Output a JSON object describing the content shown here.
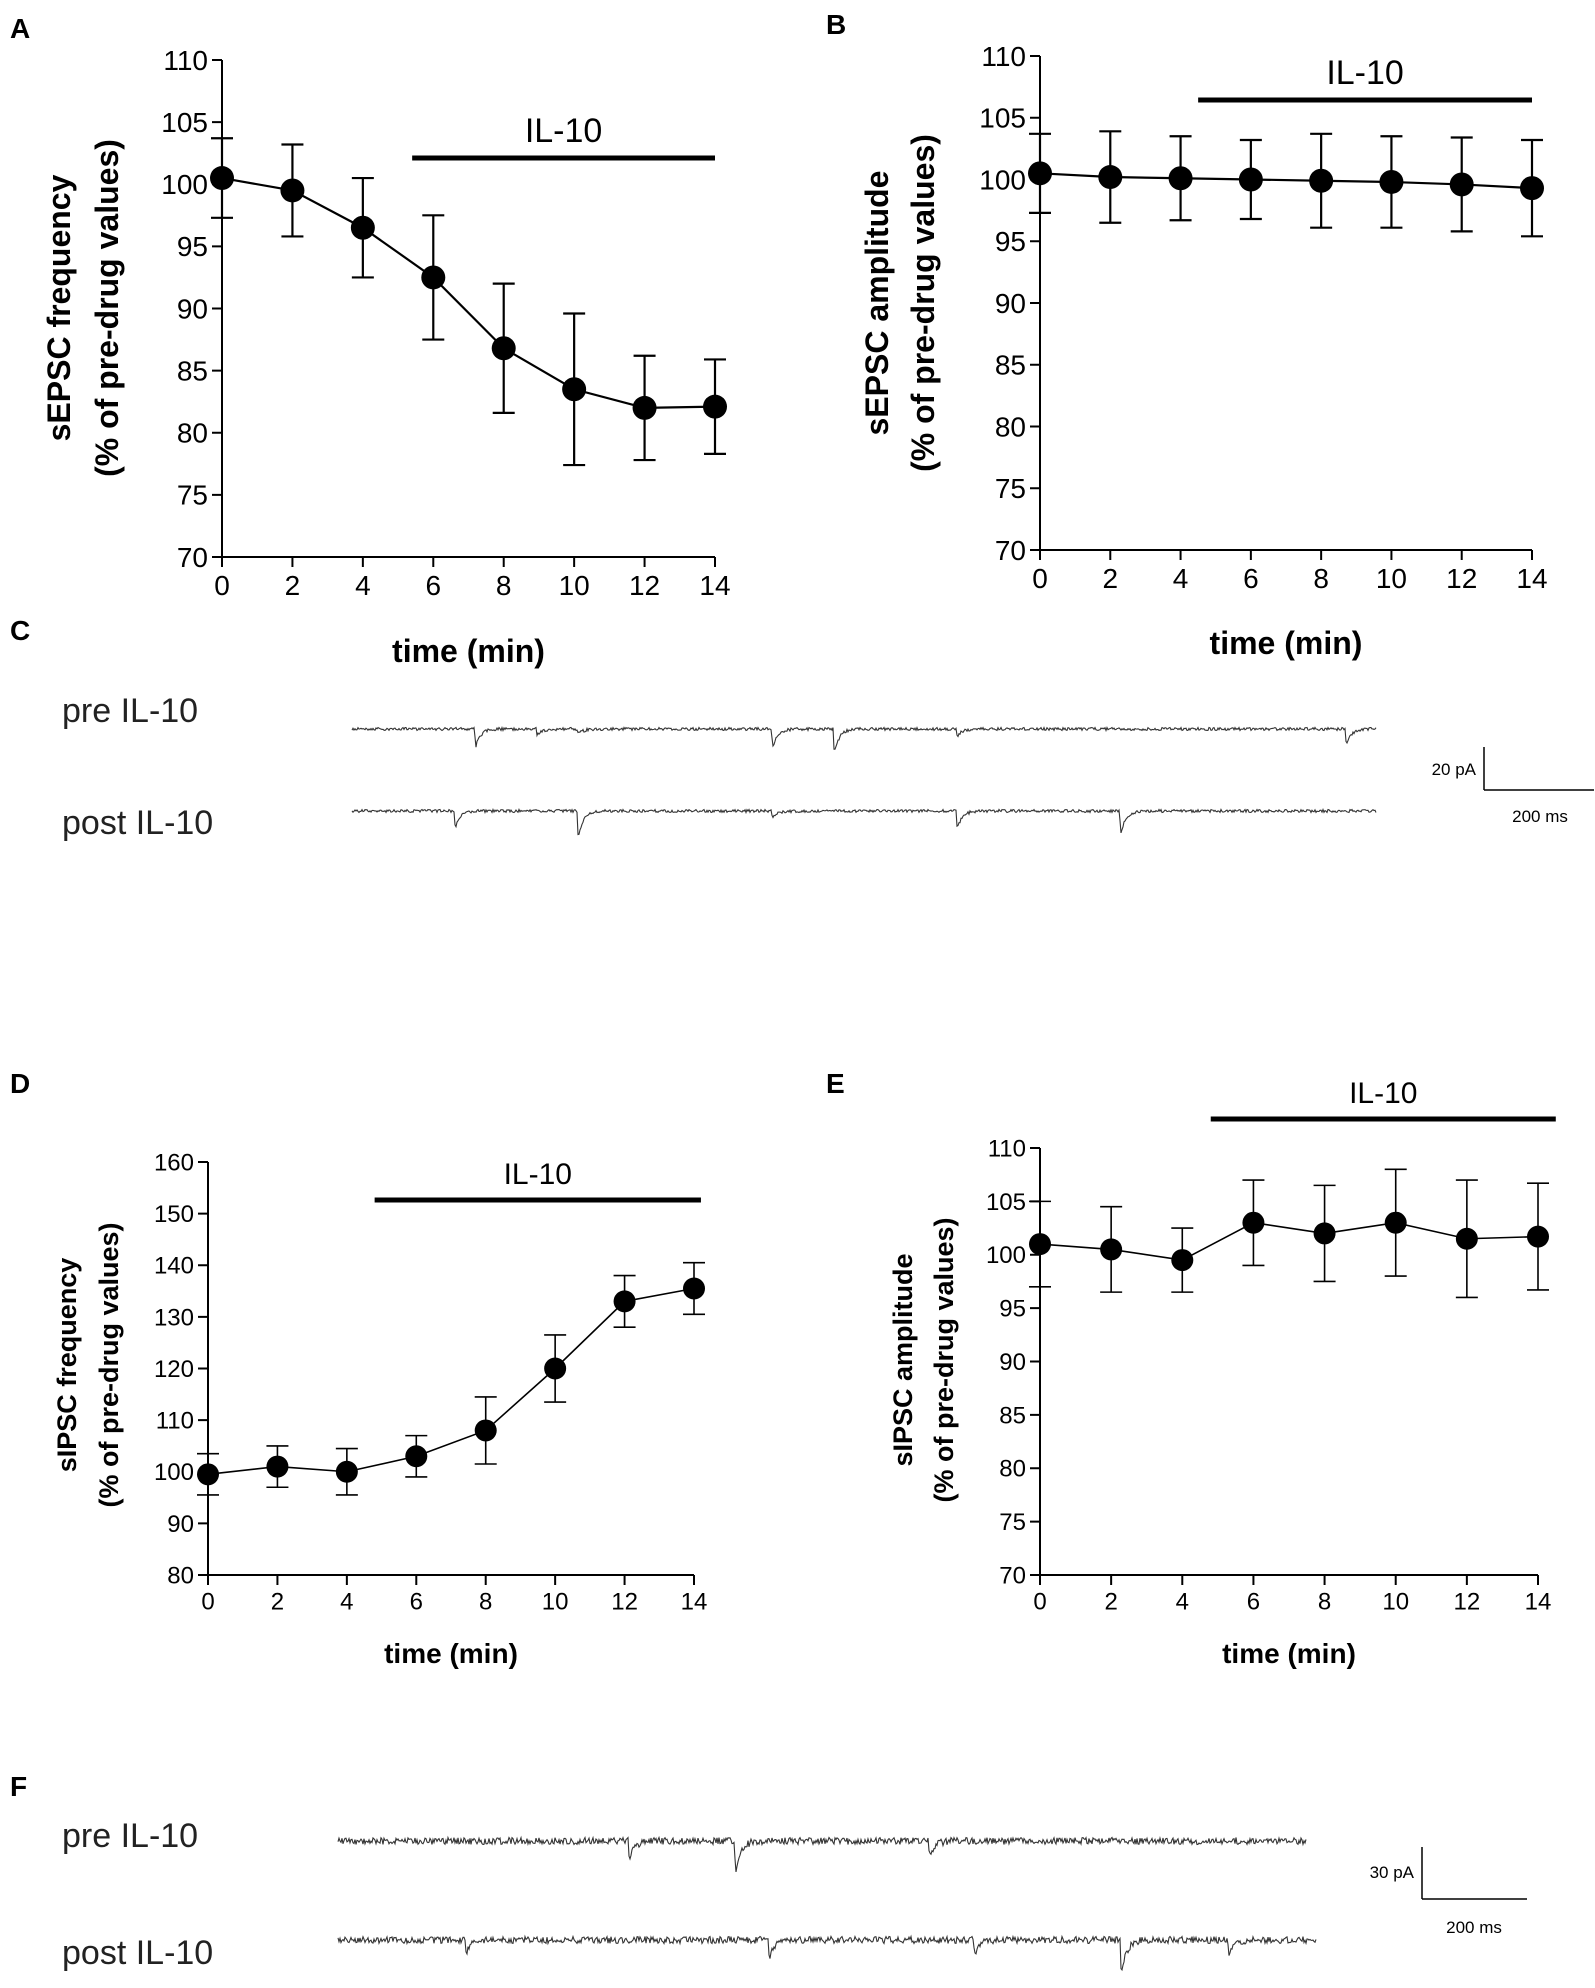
{
  "chart_data": [
    {
      "panel": "A",
      "type": "line",
      "x": [
        0,
        2,
        4,
        6,
        8,
        10,
        12,
        14
      ],
      "values": [
        100.5,
        99.5,
        96.5,
        92.5,
        86.8,
        83.5,
        82.0,
        82.1
      ],
      "errors": [
        3.2,
        3.7,
        4.0,
        5.0,
        5.2,
        6.1,
        4.2,
        3.8
      ],
      "xlim": [
        0,
        14
      ],
      "ylim": [
        70,
        110
      ],
      "xticks": [
        0,
        2,
        4,
        6,
        8,
        10,
        12,
        14
      ],
      "yticks": [
        70,
        75,
        80,
        85,
        90,
        95,
        100,
        105,
        110
      ],
      "xlabel": "time (min)",
      "ylabel": [
        "sEPSC frequency",
        "(% of pre-drug values)"
      ],
      "drug_bar": {
        "label": "IL-10",
        "start": 5.4,
        "end": 14
      }
    },
    {
      "panel": "B",
      "type": "line",
      "x": [
        0,
        2,
        4,
        6,
        8,
        10,
        12,
        14
      ],
      "values": [
        100.5,
        100.2,
        100.1,
        100.0,
        99.9,
        99.8,
        99.6,
        99.3
      ],
      "errors": [
        3.2,
        3.7,
        3.4,
        3.2,
        3.8,
        3.7,
        3.8,
        3.9
      ],
      "xlim": [
        0,
        14
      ],
      "ylim": [
        70,
        110
      ],
      "xticks": [
        0,
        2,
        4,
        6,
        8,
        10,
        12,
        14
      ],
      "yticks": [
        70,
        75,
        80,
        85,
        90,
        95,
        100,
        105,
        110
      ],
      "xlabel": "time (min)",
      "ylabel": [
        "sEPSC amplitude",
        "(% of pre-drug values)"
      ],
      "drug_bar": {
        "label": "IL-10",
        "start": 4.5,
        "end": 14
      }
    },
    {
      "panel": "D",
      "type": "line",
      "x": [
        0,
        2,
        4,
        6,
        8,
        10,
        12,
        14
      ],
      "values": [
        99.5,
        101.0,
        100.0,
        103.0,
        108.0,
        120.0,
        133.0,
        135.5
      ],
      "errors": [
        4.0,
        4.0,
        4.5,
        4.0,
        6.5,
        6.5,
        5.0,
        5.0
      ],
      "xlim": [
        0,
        14
      ],
      "ylim": [
        80,
        160
      ],
      "xticks": [
        0,
        2,
        4,
        6,
        8,
        10,
        12,
        14
      ],
      "yticks": [
        80,
        90,
        100,
        110,
        120,
        130,
        140,
        150,
        160
      ],
      "xlabel": "time (min)",
      "ylabel": [
        "sIPSC frequency",
        "(% of pre-drug values)"
      ],
      "drug_bar": {
        "label": "IL-10",
        "start": 4.8,
        "end": 14.2
      }
    },
    {
      "panel": "E",
      "type": "line",
      "x": [
        0,
        2,
        4,
        6,
        8,
        10,
        12,
        14
      ],
      "values": [
        101.0,
        100.5,
        99.5,
        103.0,
        102.0,
        103.0,
        101.5,
        101.7
      ],
      "errors": [
        4.0,
        4.0,
        3.0,
        4.0,
        4.5,
        5.0,
        5.5,
        5.0
      ],
      "xlim": [
        0,
        14
      ],
      "ylim": [
        70,
        110
      ],
      "xticks": [
        0,
        2,
        4,
        6,
        8,
        10,
        12,
        14
      ],
      "yticks": [
        70,
        75,
        80,
        85,
        90,
        95,
        100,
        105,
        110
      ],
      "xlabel": "time (min)",
      "ylabel": [
        "sIPSC amplitude",
        "(% of pre-drug values)"
      ],
      "drug_bar": {
        "label": "IL-10",
        "start": 4.8,
        "end": 14.5
      }
    }
  ],
  "traces": [
    {
      "panel": "C",
      "rows": [
        {
          "label": "pre IL-10",
          "events": [
            0.12,
            0.18,
            0.22,
            0.41,
            0.47,
            0.59,
            0.97
          ],
          "amps": [
            0.7,
            0.25,
            0.2,
            0.75,
            1.0,
            0.3,
            0.6
          ]
        },
        {
          "label": "post IL-10",
          "events": [
            0.1,
            0.22,
            0.41,
            0.59,
            0.75
          ],
          "amps": [
            0.6,
            1.0,
            0.25,
            0.65,
            0.8
          ]
        }
      ],
      "scale": {
        "y_label": "20 pA",
        "x_label": "200 ms"
      }
    },
    {
      "panel": "F",
      "rows": [
        {
          "label": "pre IL-10",
          "events": [
            0.3,
            0.41,
            0.61
          ],
          "amps": [
            0.6,
            1.0,
            0.5
          ]
        },
        {
          "label": "post IL-10",
          "events": [
            0.13,
            0.44,
            0.65,
            0.8,
            0.91
          ],
          "amps": [
            0.35,
            0.55,
            0.4,
            1.0,
            0.5
          ]
        }
      ],
      "scale": {
        "y_label": "30 pA",
        "x_label": "200 ms"
      }
    }
  ],
  "panel_labels": [
    "A",
    "B",
    "C",
    "D",
    "E",
    "F"
  ]
}
